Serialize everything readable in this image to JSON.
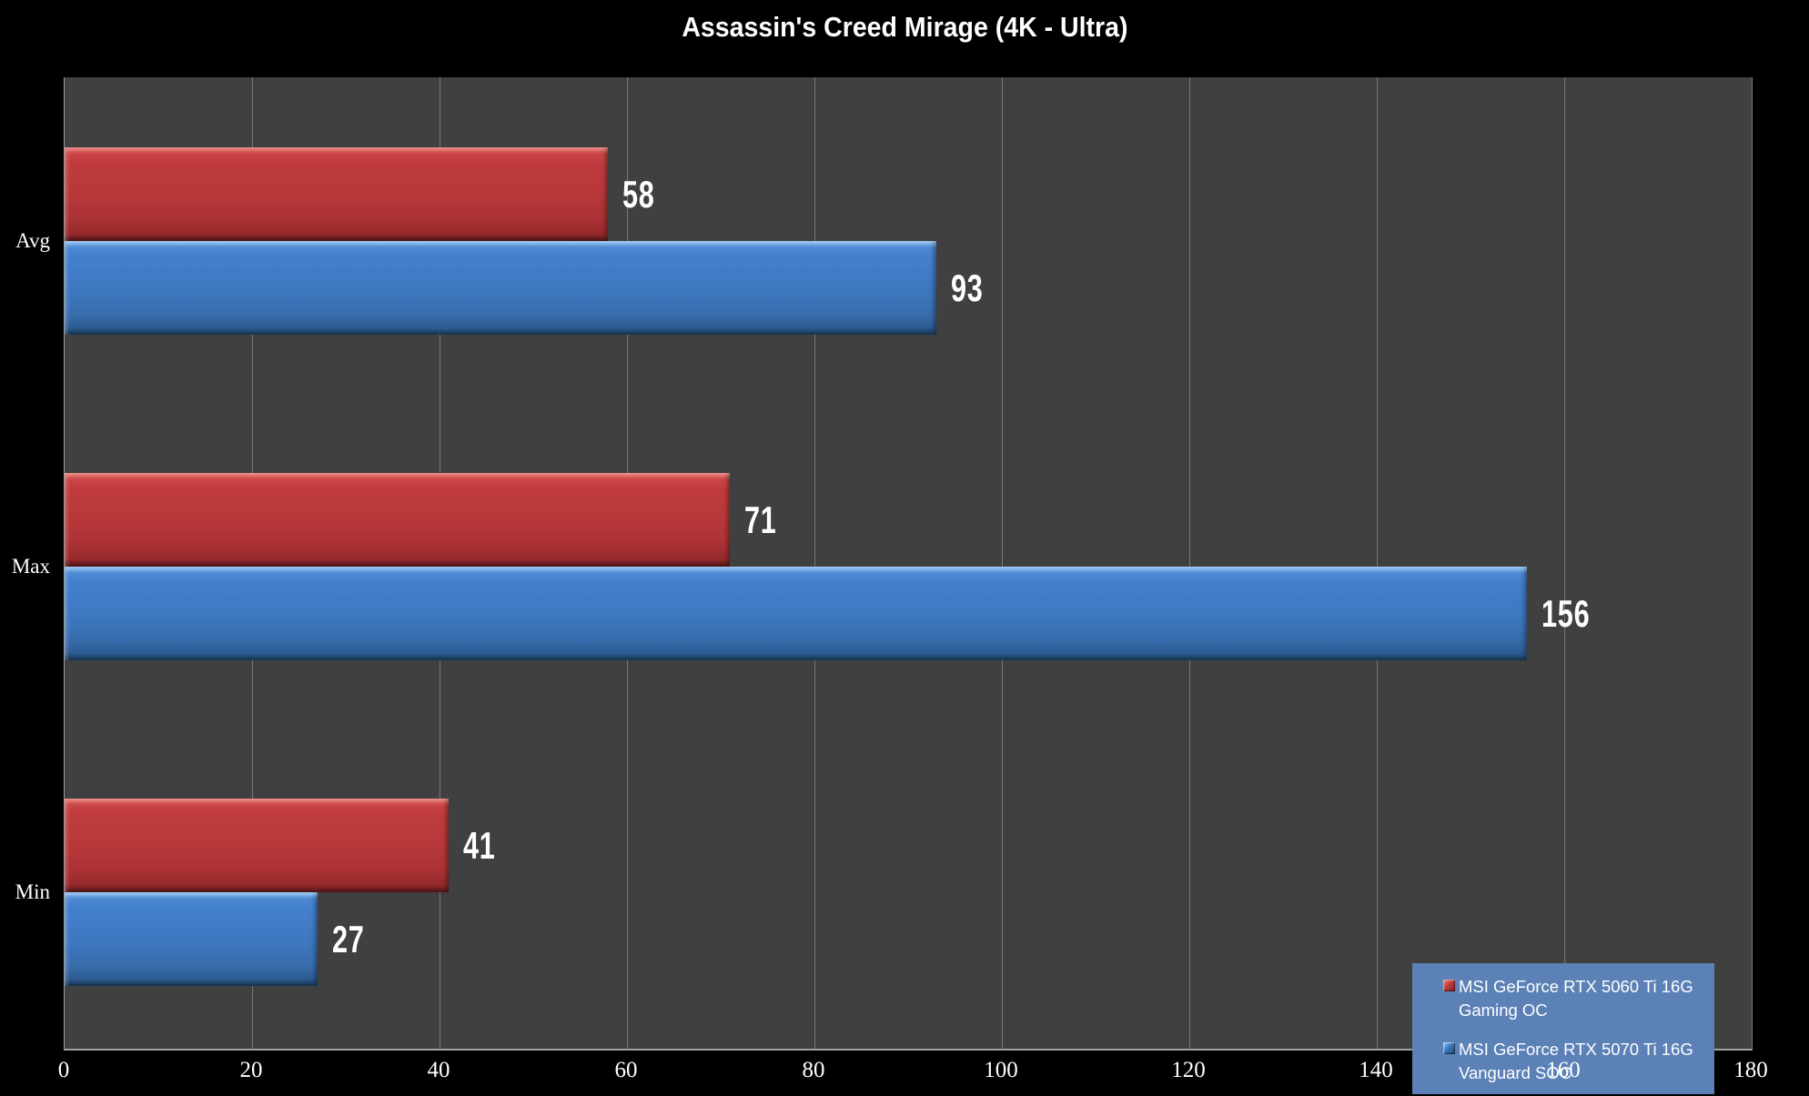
{
  "title": "Assassin's Creed Mirage (4K - Ultra)",
  "chart_data": {
    "type": "bar",
    "orientation": "horizontal",
    "title": "Assassin's Creed Mirage (4K - Ultra)",
    "categories": [
      "Avg",
      "Max",
      "Min"
    ],
    "series": [
      {
        "name": "MSI GeForce RTX 5060 Ti 16G Gaming OC",
        "key": "rtx-5060-ti-gaming-oc",
        "color": "#bf3a3c",
        "values": [
          58,
          71,
          41
        ]
      },
      {
        "name": "MSI GeForce RTX 5070 Ti 16G Vanguard SOC",
        "key": "rtx-5070-ti-vanguard-soc",
        "color": "#3f80cb",
        "values": [
          93,
          156,
          27
        ]
      }
    ],
    "xlim": [
      0,
      180
    ],
    "x_ticks": [
      0,
      20,
      40,
      60,
      80,
      100,
      120,
      140,
      160,
      180
    ],
    "grid": true,
    "value_labels": true,
    "legend_position": "bottom-right"
  },
  "colors": {
    "background": "#000000",
    "plot_background": "#404040",
    "gridline": "#787878",
    "axis_line": "#9c9c9c",
    "text": "#ffffff",
    "legend_background": "#5b81b7",
    "series_red": "#bf3a3c",
    "series_blue": "#3f80cb"
  }
}
